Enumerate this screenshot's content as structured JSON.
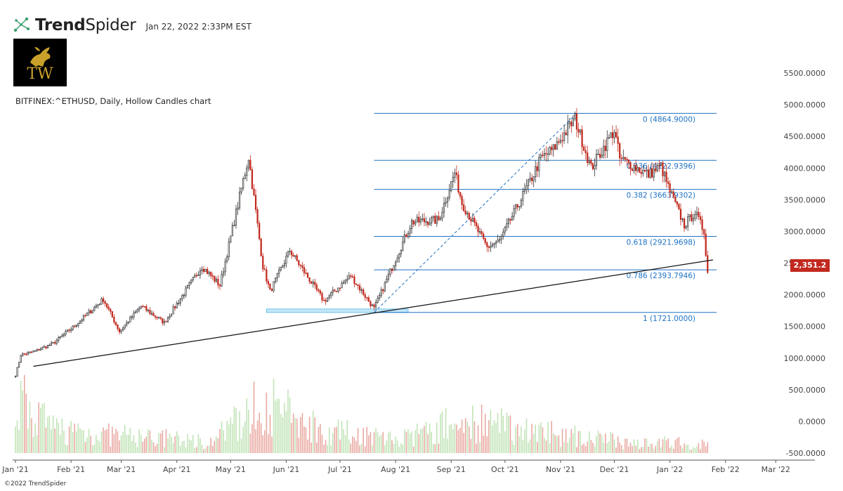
{
  "header": {
    "brand_bold": "Trend",
    "brand_light": "Spider",
    "timestamp": "Jan 22, 2022 2:33PM EST",
    "logo_text": "TW"
  },
  "symbol_description": "BITFINEX:^ETHUSD, Daily, Hollow Candles chart",
  "copyright": "©2022 TrendSpider",
  "chart_data": {
    "type": "candlestick",
    "symbol": "BITFINEX:^ETHUSD",
    "interval": "Daily",
    "style": "Hollow Candles",
    "y_axis": {
      "ticks": [
        5500,
        5000,
        4500,
        4000,
        3500,
        3000,
        2500,
        2000,
        1500,
        1000,
        500,
        0,
        -500
      ],
      "tick_labels": [
        "5500.0000",
        "5000.0000",
        "4500.0000",
        "4000.0000",
        "3500.0000",
        "3000.0000",
        "2500.0000",
        "2000.0000",
        "1500.0000",
        "1000.0000",
        "500.0000",
        "0.0000",
        "-500.0000"
      ],
      "range": [
        -500,
        5900
      ]
    },
    "x_axis": {
      "tick_labels": [
        "Jan '21",
        "Feb '21",
        "Mar '21",
        "Apr '21",
        "May '21",
        "Jun '21",
        "Jul '21",
        "Aug '21",
        "Sep '21",
        "Oct '21",
        "Nov '21",
        "Dec '21",
        "Jan '22",
        "Feb '22",
        "Mar '22"
      ],
      "tick_dates": [
        "2021-01-01",
        "2021-02-01",
        "2021-03-01",
        "2021-04-01",
        "2021-05-01",
        "2021-06-01",
        "2021-07-01",
        "2021-08-01",
        "2021-09-01",
        "2021-10-01",
        "2021-11-01",
        "2021-12-01",
        "2022-01-01",
        "2022-02-01",
        "2022-03-01"
      ],
      "range": [
        "2021-01-01",
        "2022-03-15"
      ]
    },
    "last_price": "2,351.2",
    "last_price_value": 2351.2,
    "close_anchors": [
      {
        "date": "2021-01-01",
        "close": 730
      },
      {
        "date": "2021-01-04",
        "close": 1050
      },
      {
        "date": "2021-01-11",
        "close": 1100
      },
      {
        "date": "2021-01-22",
        "close": 1230
      },
      {
        "date": "2021-02-03",
        "close": 1510
      },
      {
        "date": "2021-02-19",
        "close": 1930
      },
      {
        "date": "2021-02-28",
        "close": 1420
      },
      {
        "date": "2021-03-12",
        "close": 1820
      },
      {
        "date": "2021-03-25",
        "close": 1560
      },
      {
        "date": "2021-04-15",
        "close": 2450
      },
      {
        "date": "2021-04-25",
        "close": 2150
      },
      {
        "date": "2021-05-11",
        "close": 4180
      },
      {
        "date": "2021-05-19",
        "close": 2450
      },
      {
        "date": "2021-05-23",
        "close": 2050
      },
      {
        "date": "2021-06-03",
        "close": 2700
      },
      {
        "date": "2021-06-22",
        "close": 1900
      },
      {
        "date": "2021-07-07",
        "close": 2300
      },
      {
        "date": "2021-07-20",
        "close": 1780
      },
      {
        "date": "2021-08-10",
        "close": 3150
      },
      {
        "date": "2021-08-25",
        "close": 3180
      },
      {
        "date": "2021-09-03",
        "close": 3930
      },
      {
        "date": "2021-09-07",
        "close": 3450
      },
      {
        "date": "2021-09-21",
        "close": 2750
      },
      {
        "date": "2021-09-28",
        "close": 2850
      },
      {
        "date": "2021-10-16",
        "close": 3850
      },
      {
        "date": "2021-10-21",
        "close": 4150
      },
      {
        "date": "2021-10-28",
        "close": 4300
      },
      {
        "date": "2021-11-09",
        "close": 4780
      },
      {
        "date": "2021-11-18",
        "close": 4000
      },
      {
        "date": "2021-12-01",
        "close": 4600
      },
      {
        "date": "2021-12-04",
        "close": 4150
      },
      {
        "date": "2021-12-20",
        "close": 3900
      },
      {
        "date": "2021-12-27",
        "close": 4030
      },
      {
        "date": "2021-12-31",
        "close": 3700
      },
      {
        "date": "2022-01-09",
        "close": 3100
      },
      {
        "date": "2022-01-15",
        "close": 3300
      },
      {
        "date": "2022-01-20",
        "close": 3000
      },
      {
        "date": "2022-01-22",
        "close": 2351
      }
    ],
    "volume_anchors": [
      {
        "date": "2021-01-03",
        "value": 1150
      },
      {
        "date": "2021-01-20",
        "value": 550
      },
      {
        "date": "2021-02-20",
        "value": 400
      },
      {
        "date": "2021-04-20",
        "value": 250
      },
      {
        "date": "2021-05-19",
        "value": 1100
      },
      {
        "date": "2021-06-22",
        "value": 500
      },
      {
        "date": "2021-08-05",
        "value": 300
      },
      {
        "date": "2021-09-07",
        "value": 700
      },
      {
        "date": "2021-12-04",
        "value": 250
      },
      {
        "date": "2022-01-21",
        "value": 200
      }
    ],
    "fibonacci": {
      "levels": [
        {
          "ratio": "0",
          "price": 4864.9,
          "label": "0 (4864.9000)"
        },
        {
          "ratio": "0.236",
          "price": 4122.9396,
          "label": "0.236 (4122.9396)"
        },
        {
          "ratio": "0.382",
          "price": 3663.9302,
          "label": "0.382 (3663.9302)"
        },
        {
          "ratio": "0.618",
          "price": 2921.9698,
          "label": "0.618 (2921.9698)"
        },
        {
          "ratio": "0.786",
          "price": 2393.7946,
          "label": "0.786 (2393.7946)"
        },
        {
          "ratio": "1",
          "price": 1721.0,
          "label": "1 (1721.0000)"
        }
      ],
      "start_date": "2021-07-20",
      "end_date": "2022-01-27",
      "swing_low": {
        "date": "2021-07-20",
        "price": 1721.0
      },
      "swing_high": {
        "date": "2021-11-10",
        "price": 4864.9
      }
    },
    "trendline": {
      "start": {
        "date": "2021-01-11",
        "price": 870
      },
      "end": {
        "date": "2022-01-25",
        "price": 2550
      }
    },
    "support_zone": {
      "start_date": "2021-05-21",
      "end_date": "2021-08-08",
      "price_top": 1775,
      "price_bottom": 1720
    },
    "colors": {
      "up": "#333333",
      "down": "#c2291e",
      "volume_up": "#bfe3b4",
      "volume_down": "#e9a69f",
      "fib_line": "#1f72c4",
      "trendline": "#111111",
      "zone_fill": "#a9dcf5",
      "price_badge": "#c2291e"
    }
  }
}
